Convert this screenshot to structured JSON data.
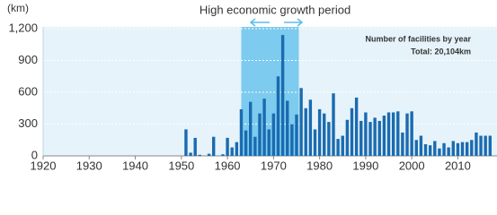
{
  "chart_data": {
    "type": "bar",
    "title": "High economic growth period",
    "y_label": "(km)",
    "legend_title": "Number of facilities by year",
    "total_label": "Total: 20,104km",
    "highlight_range": [
      1963,
      1975.5
    ],
    "highlight_color": "#7dcbef",
    "background": "#e6f3fa",
    "color": "#1a6bb0",
    "grid": true,
    "x": [
      1951,
      1952,
      1953,
      1954,
      1955,
      1956,
      1957,
      1958,
      1959,
      1960,
      1961,
      1962,
      1963,
      1964,
      1965,
      1966,
      1967,
      1968,
      1969,
      1970,
      1971,
      1972,
      1973,
      1974,
      1975,
      1976,
      1977,
      1978,
      1979,
      1980,
      1981,
      1982,
      1983,
      1984,
      1985,
      1986,
      1987,
      1988,
      1989,
      1990,
      1991,
      1992,
      1993,
      1994,
      1995,
      1996,
      1997,
      1998,
      1999,
      2000,
      2001,
      2002,
      2003,
      2004,
      2005,
      2006,
      2007,
      2008,
      2009,
      2010,
      2011,
      2012,
      2013,
      2014,
      2015,
      2016,
      2017
    ],
    "values": [
      250,
      30,
      170,
      10,
      0,
      20,
      180,
      0,
      15,
      170,
      80,
      130,
      440,
      240,
      510,
      180,
      400,
      540,
      250,
      400,
      750,
      1140,
      520,
      300,
      390,
      640,
      450,
      530,
      250,
      440,
      400,
      320,
      590,
      160,
      190,
      340,
      450,
      550,
      330,
      410,
      320,
      360,
      330,
      380,
      410,
      410,
      420,
      220,
      400,
      420,
      150,
      190,
      110,
      100,
      140,
      70,
      120,
      80,
      140,
      120,
      130,
      130,
      150,
      220,
      190,
      190,
      190
    ],
    "xlim": [
      1920,
      2018.5
    ],
    "xticks": [
      1920,
      1930,
      1940,
      1950,
      1960,
      1970,
      1980,
      1990,
      2000,
      2010
    ],
    "ylim": [
      0,
      1200
    ],
    "yticks": [
      0,
      300,
      600,
      900,
      {
        "value": 1200,
        "label": "1,200"
      }
    ]
  }
}
